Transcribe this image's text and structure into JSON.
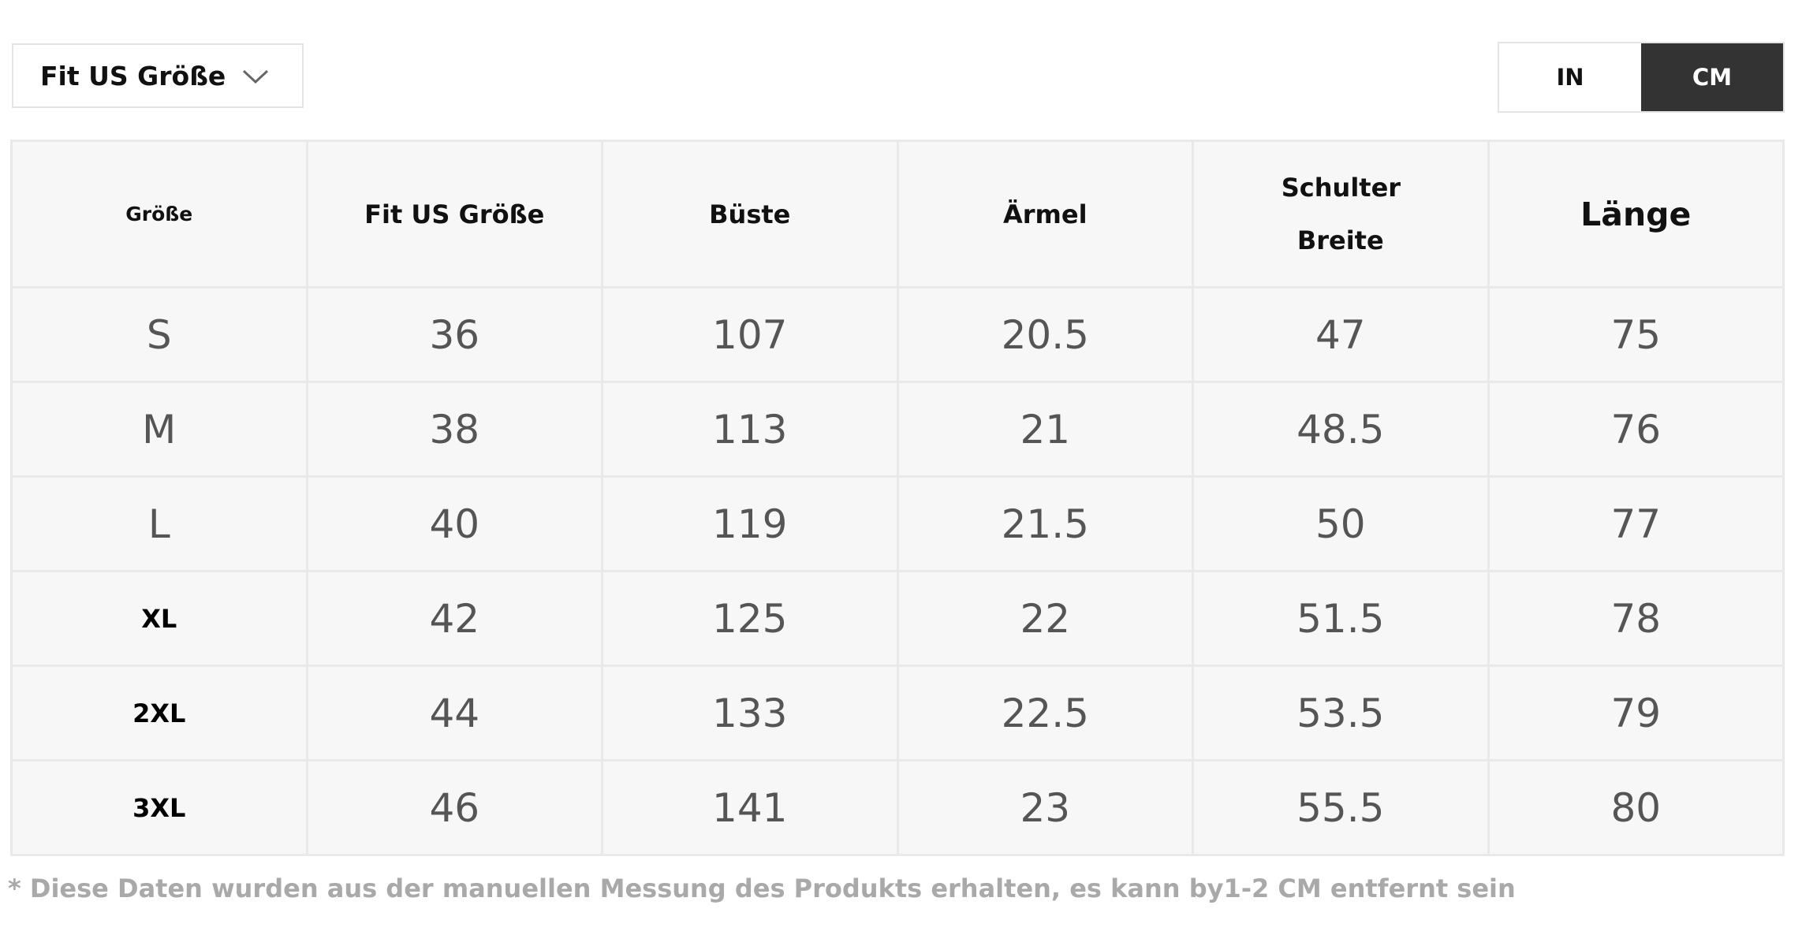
{
  "dropdown": {
    "label": "Fit US Größe"
  },
  "unit_toggle": {
    "options": [
      "IN",
      "CM"
    ],
    "selected": "CM"
  },
  "table": {
    "headers": [
      "Größe",
      "Fit US Größe",
      "Büste",
      "Ärmel",
      "Schulter Breite",
      "Länge"
    ],
    "rows": [
      [
        "S",
        "36",
        "107",
        "20.5",
        "47",
        "75"
      ],
      [
        "M",
        "38",
        "113",
        "21",
        "48.5",
        "76"
      ],
      [
        "L",
        "40",
        "119",
        "21.5",
        "50",
        "77"
      ],
      [
        "XL",
        "42",
        "125",
        "22",
        "51.5",
        "78"
      ],
      [
        "2XL",
        "44",
        "133",
        "22.5",
        "53.5",
        "79"
      ],
      [
        "3XL",
        "46",
        "141",
        "23",
        "55.5",
        "80"
      ]
    ]
  },
  "footnote": "* Diese Daten wurden aus der manuellen Messung des Produkts erhalten, es kann by1-2 CM entfernt sein"
}
